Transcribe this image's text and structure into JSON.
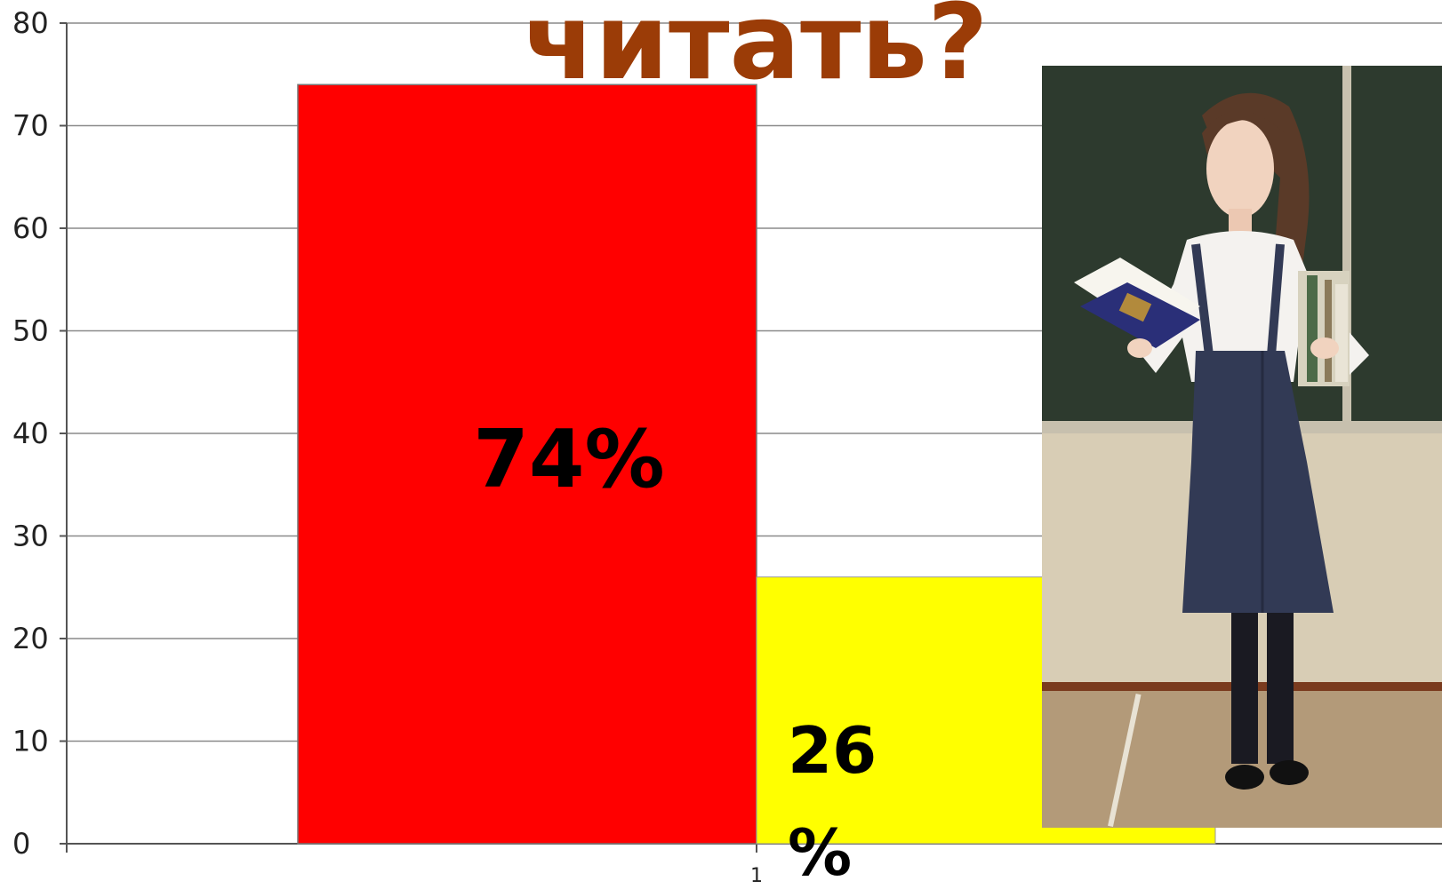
{
  "title": "читать?",
  "chart_data": {
    "type": "bar",
    "categories": [
      "1"
    ],
    "series": [
      {
        "values": [
          74
        ],
        "color": "#ff0000",
        "data_label": "74%"
      },
      {
        "values": [
          26
        ],
        "color": "#ffff00",
        "data_label_parts": [
          "26",
          "%"
        ]
      }
    ],
    "ylim": [
      0,
      80
    ],
    "yticks": [
      "0",
      "10",
      "20",
      "30",
      "40",
      "50",
      "60",
      "70",
      "80"
    ],
    "grid": true
  },
  "photo": {
    "subject": "girl-in-school-uniform-holding-books"
  }
}
